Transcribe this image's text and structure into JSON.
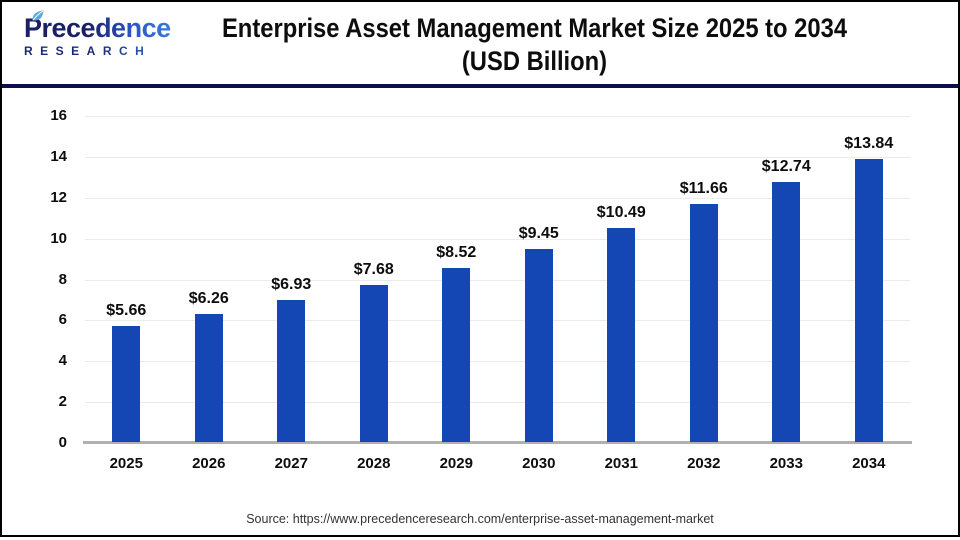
{
  "header": {
    "logo": {
      "brand": "Precedence",
      "sub": "RESEARCH"
    },
    "title_line1": "Enterprise Asset Management Market Size 2025 to 2034",
    "title_line2": "(USD Billion)"
  },
  "chart_data": {
    "type": "bar",
    "title": "Enterprise Asset Management Market Size 2025 to 2034 (USD Billion)",
    "categories": [
      "2025",
      "2026",
      "2027",
      "2028",
      "2029",
      "2030",
      "2031",
      "2032",
      "2033",
      "2034"
    ],
    "values": [
      5.66,
      6.26,
      6.93,
      7.68,
      8.52,
      9.45,
      10.49,
      11.66,
      12.74,
      13.84
    ],
    "data_labels": [
      "$5.66",
      "$6.26",
      "$6.93",
      "$7.68",
      "$8.52",
      "$9.45",
      "$10.49",
      "$11.66",
      "$12.74",
      "$13.84"
    ],
    "xlabel": "",
    "ylabel": "",
    "ylim": [
      0,
      16
    ],
    "yticks": [
      0,
      2,
      4,
      6,
      8,
      10,
      12,
      14,
      16
    ],
    "grid": true,
    "legend": "none",
    "bar_color": "#1547b4",
    "gridline_color": "#ebebeb",
    "axis_line_color": "#b0b0b0"
  },
  "footer": {
    "source": "Source: https://www.precedenceresearch.com/enterprise-asset-management-market"
  }
}
